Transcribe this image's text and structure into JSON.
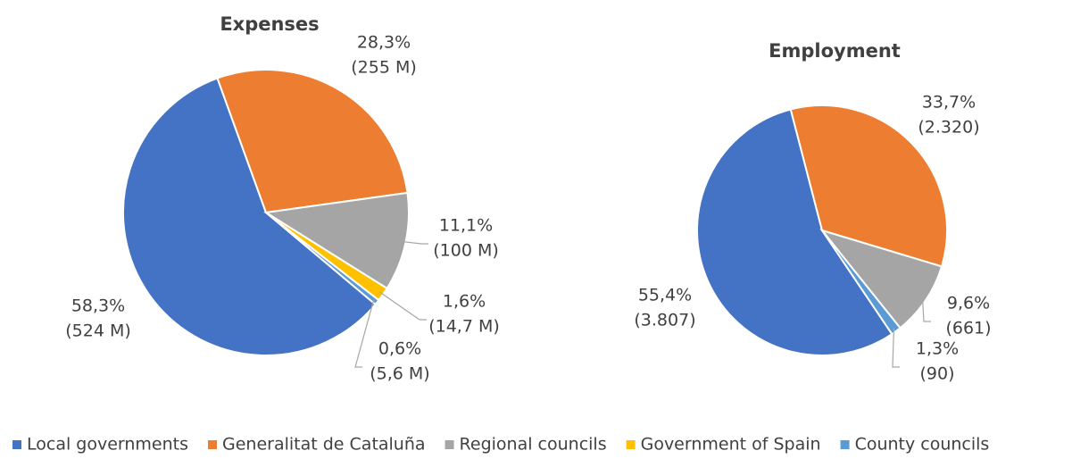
{
  "chart_data": [
    {
      "type": "pie",
      "title": "Expenses",
      "categories": [
        "Local governments",
        "Generalitat de Cataluña",
        "Regional councils",
        "Government of Spain",
        "County councils"
      ],
      "values": [
        58.3,
        28.3,
        11.1,
        1.6,
        0.6
      ],
      "value_labels": [
        "58,3%",
        "28,3%",
        "11,1%",
        "1,6%",
        "0,6%"
      ],
      "amount_labels": [
        "(524 M)",
        "(255 M)",
        "(100 M)",
        "(14,7 M)",
        "(5,6 M)"
      ],
      "colors": [
        "#4472c4",
        "#ed7d31",
        "#a5a5a5",
        "#ffc000",
        "#5b9bd5"
      ],
      "start_angle": 130,
      "legend": "bottom"
    },
    {
      "type": "pie",
      "title": "Employment",
      "categories": [
        "Local governments",
        "Generalitat de Cataluña",
        "Regional councils",
        "County councils"
      ],
      "values": [
        55.4,
        33.7,
        9.6,
        1.3
      ],
      "value_labels": [
        "55,4%",
        "33,7%",
        "9,6%",
        "1,3%"
      ],
      "amount_labels": [
        "(3.807)",
        "(2.320)",
        "(661)",
        "(90)"
      ],
      "colors": [
        "#4472c4",
        "#ed7d31",
        "#a5a5a5",
        "#5b9bd5"
      ],
      "start_angle": 146
    }
  ]
}
